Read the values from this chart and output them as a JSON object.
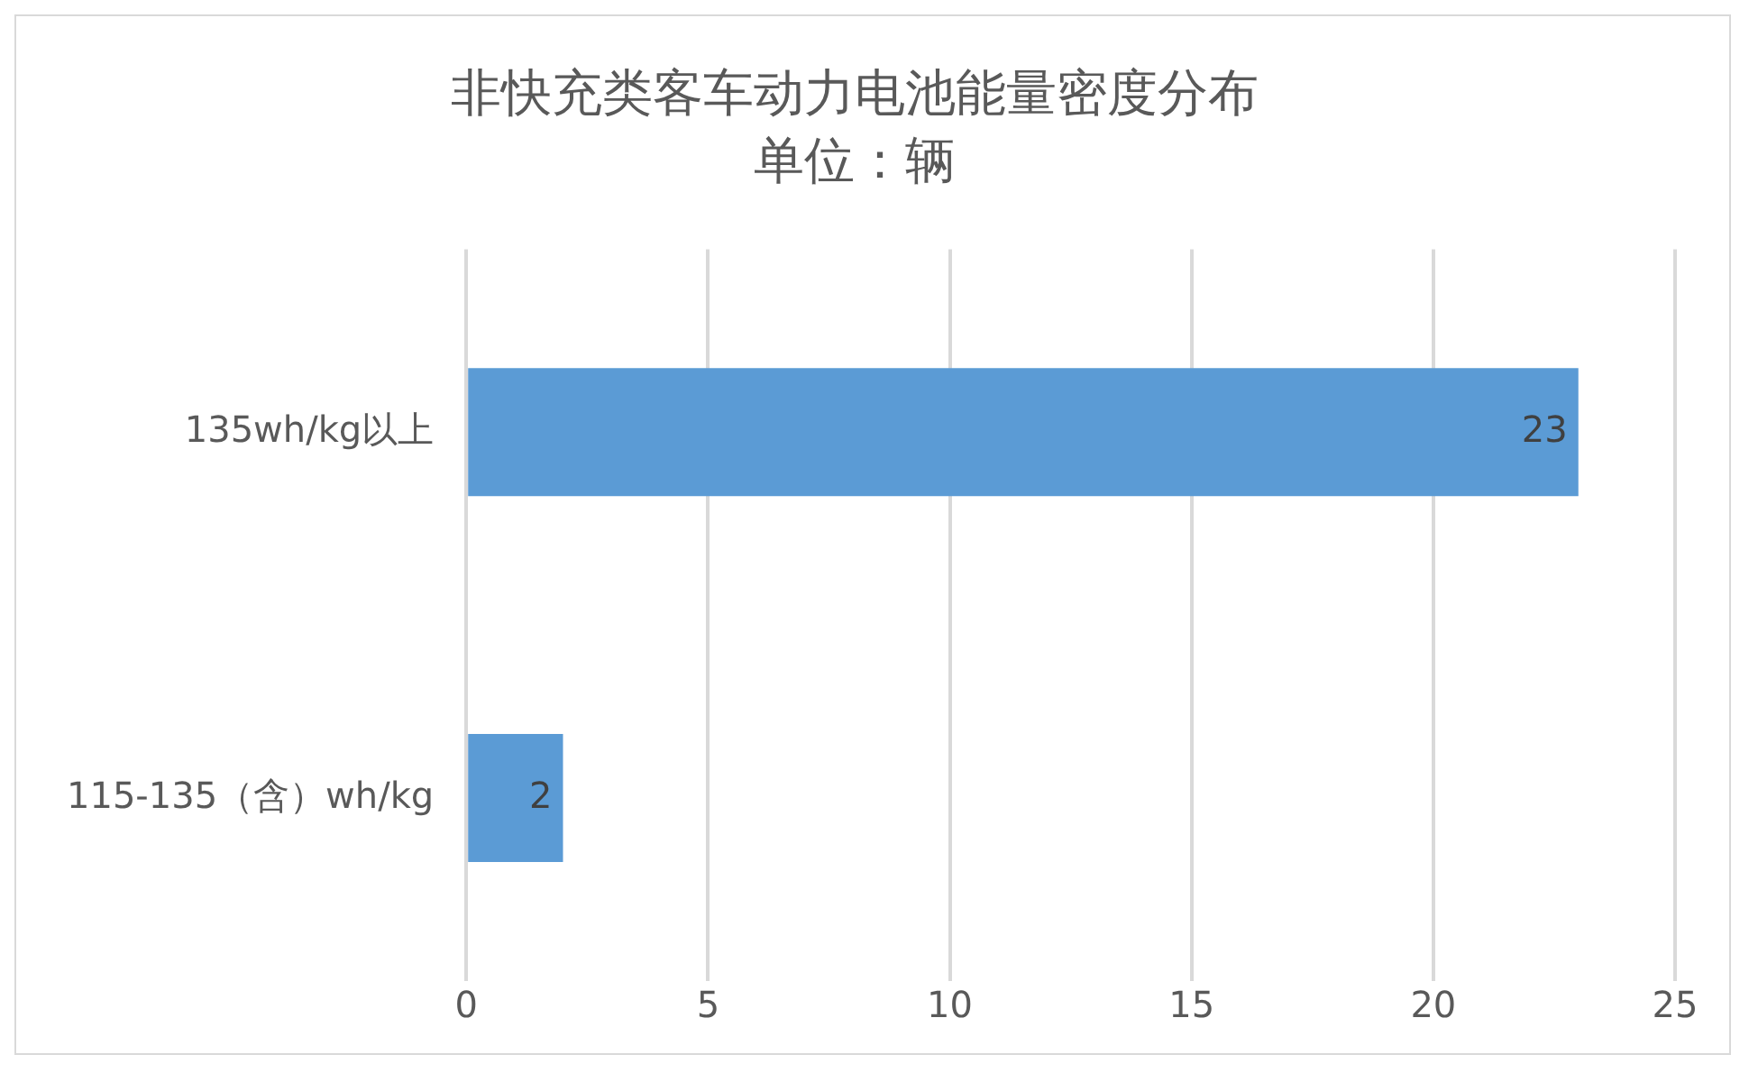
{
  "chart_data": {
    "type": "bar",
    "orientation": "horizontal",
    "title": "非快充类客车动力电池能量密度分布",
    "subtitle": "单位：辆",
    "categories": [
      "135wh/kg以上",
      "115-135（含）wh/kg"
    ],
    "values": [
      23,
      2
    ],
    "color": "#5b9bd5",
    "xlim": [
      0,
      25
    ],
    "xticks": [
      0,
      5,
      10,
      15,
      20,
      25
    ],
    "grid": "x",
    "data_labels": true
  }
}
